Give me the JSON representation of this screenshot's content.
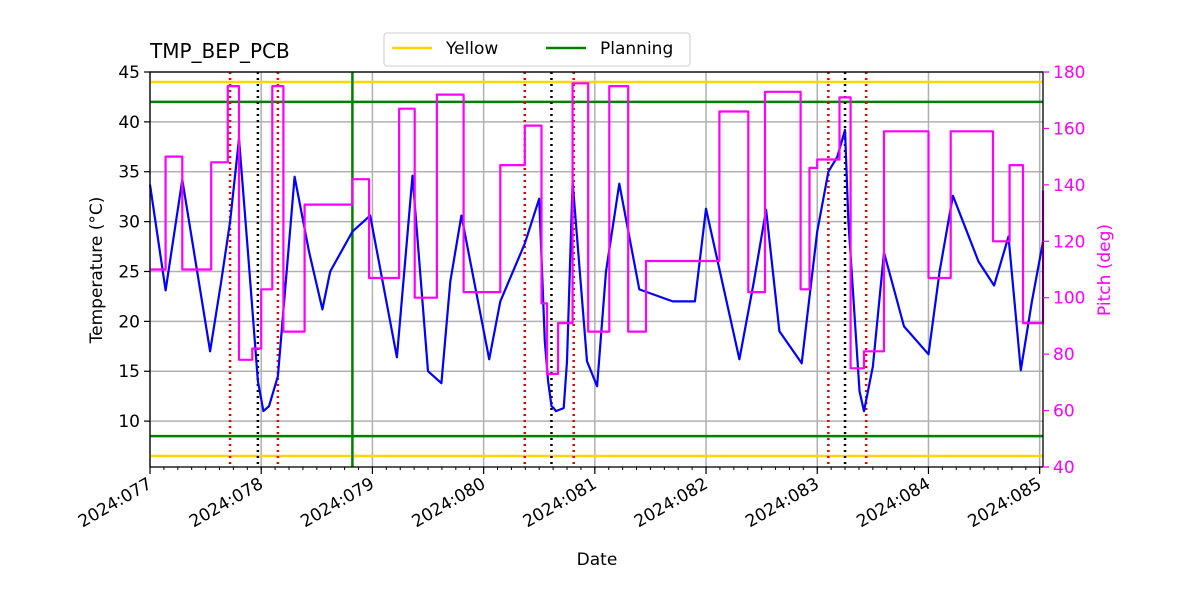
{
  "chart_data": {
    "type": "line",
    "title": "TMP_BEP_PCB",
    "xlabel": "Date",
    "ylabel": "Temperature ($^\\circ$C)",
    "ylabel_display": "Temperature (°C)",
    "y2label": "Pitch (deg)",
    "x_unit": "day-of-year 2024",
    "xlim": [
      77.0,
      85.03
    ],
    "ylim": [
      5.4,
      45
    ],
    "y2lim": [
      40,
      180
    ],
    "x_ticks": [
      77,
      78,
      79,
      80,
      81,
      82,
      83,
      84,
      85
    ],
    "x_tick_labels": [
      "2024:077",
      "2024:078",
      "2024:079",
      "2024:080",
      "2024:081",
      "2024:082",
      "2024:083",
      "2024:084",
      "2024:085"
    ],
    "y_ticks": [
      10,
      15,
      20,
      25,
      30,
      35,
      40,
      45
    ],
    "y2_ticks": [
      40,
      60,
      80,
      100,
      120,
      140,
      160,
      180
    ],
    "grid": true,
    "legend": {
      "placement": "top-center",
      "entries": [
        {
          "label": "Yellow",
          "color": "#FFD700"
        },
        {
          "label": "Planning",
          "color": "#008000"
        }
      ]
    },
    "limits": {
      "yellow": [
        6.5,
        44
      ],
      "planning": [
        8.5,
        42
      ]
    },
    "planning_vline_x": 78.82,
    "red_dotted_vlines_x": [
      77.72,
      78.15,
      80.37,
      80.81,
      83.1,
      83.44
    ],
    "black_dotted_vlines_x": [
      77.97,
      80.61,
      83.25
    ],
    "series": [
      {
        "name": "TMP_BEP_PCB",
        "color": "#0000FF",
        "axis": "left",
        "x": [
          77.0,
          77.14,
          77.29,
          77.54,
          77.64,
          77.72,
          77.8,
          77.88,
          77.97,
          78.02,
          78.07,
          78.15,
          78.3,
          78.43,
          78.55,
          78.62,
          78.82,
          78.98,
          79.22,
          79.36,
          79.5,
          79.62,
          79.7,
          79.8,
          80.05,
          80.15,
          80.37,
          80.5,
          80.55,
          80.58,
          80.61,
          80.63,
          80.65,
          80.72,
          80.75,
          80.8,
          80.93,
          81.02,
          81.1,
          81.22,
          81.4,
          81.7,
          81.9,
          82.0,
          82.3,
          82.43,
          82.54,
          82.66,
          82.86,
          83.0,
          83.1,
          83.18,
          83.25,
          83.28,
          83.38,
          83.42,
          83.5,
          83.6,
          83.78,
          84.0,
          84.1,
          84.22,
          84.45,
          84.59,
          84.72,
          84.83,
          84.93,
          85.03
        ],
        "y": [
          33.7,
          23.1,
          34.2,
          17.0,
          24.0,
          30.0,
          38.3,
          27.0,
          14.0,
          11.0,
          11.5,
          14.5,
          34.5,
          27.0,
          21.2,
          25.0,
          29.0,
          30.6,
          16.4,
          34.6,
          15.0,
          13.8,
          24.0,
          30.6,
          16.2,
          22.0,
          27.8,
          32.3,
          18.0,
          14.0,
          11.5,
          11.3,
          11.0,
          11.3,
          16.0,
          34.0,
          16.0,
          13.5,
          25.0,
          33.8,
          23.2,
          22.0,
          22.0,
          31.3,
          16.2,
          24.0,
          31.2,
          19.0,
          15.8,
          29.0,
          35.0,
          36.5,
          39.2,
          30.0,
          13.0,
          11.0,
          15.5,
          26.9,
          19.5,
          16.7,
          25.0,
          32.6,
          26.0,
          23.6,
          28.5,
          15.1,
          22.0,
          28.0
        ]
      },
      {
        "name": "Pitch",
        "color": "#FF00FF",
        "axis": "right",
        "step": true,
        "x": [
          77.0,
          77.14,
          77.29,
          77.55,
          77.7,
          77.8,
          77.92,
          78.0,
          78.1,
          78.2,
          78.39,
          78.58,
          78.82,
          78.97,
          79.24,
          79.38,
          79.58,
          79.82,
          80.15,
          80.37,
          80.52,
          80.57,
          80.67,
          80.8,
          80.94,
          81.13,
          81.3,
          81.46,
          82.0,
          82.12,
          82.38,
          82.53,
          82.85,
          82.93,
          83.0,
          83.2,
          83.3,
          83.42,
          83.6,
          84.0,
          84.2,
          84.58,
          84.73,
          84.85,
          85.03
        ],
        "y": [
          110,
          150,
          110,
          148,
          175,
          78,
          82,
          103,
          175,
          88,
          133,
          133,
          142,
          107,
          167,
          100,
          172,
          102,
          147,
          161,
          98,
          73,
          91,
          176,
          88,
          175,
          88,
          113,
          113,
          166,
          102,
          173,
          103,
          146,
          149,
          171,
          75,
          81,
          159,
          107,
          159,
          120,
          147,
          91,
          138
        ]
      }
    ]
  }
}
